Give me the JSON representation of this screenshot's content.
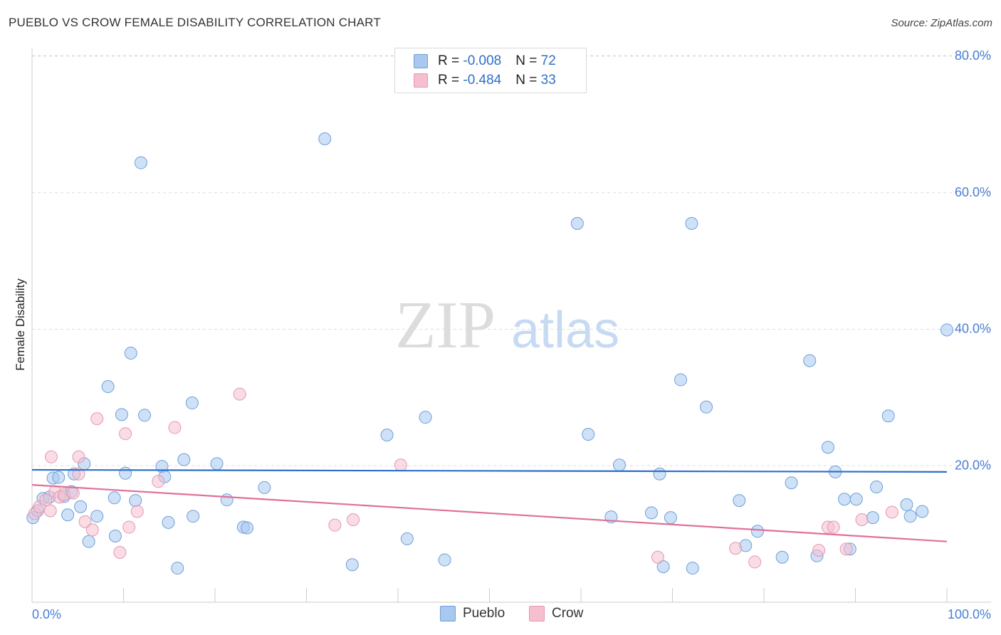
{
  "title": "PUEBLO VS CROW FEMALE DISABILITY CORRELATION CHART",
  "source": "Source: ZipAtlas.com",
  "watermark": {
    "zip": "ZIP",
    "atlas": "atlas"
  },
  "legend": [
    {
      "r_label": "R = ",
      "r_value": "-0.008",
      "n_label": "N = ",
      "n_value": "72"
    },
    {
      "r_label": "R = ",
      "r_value": "-0.484",
      "n_label": "N = ",
      "n_value": "33"
    }
  ],
  "colors": {
    "pueblo_fill": "#a8c8f0",
    "pueblo_stroke": "#6f9fd8",
    "pueblo_line": "#2f6fc9",
    "crow_fill": "#f6bfd0",
    "crow_stroke": "#e597b0",
    "crow_line": "#e0709a",
    "axis_label": "#4a7fd4"
  },
  "chart_data": {
    "type": "scatter",
    "xlabel": "",
    "ylabel": "Female Disability",
    "xlim": [
      0,
      100
    ],
    "ylim": [
      0,
      80
    ],
    "x_tick_labels": [
      "0.0%",
      "100.0%"
    ],
    "y_ticks": [
      20,
      40,
      60,
      80
    ],
    "y_tick_labels": [
      "20.0%",
      "40.0%",
      "60.0%",
      "80.0%"
    ],
    "grid": true,
    "legend_position": "top-center",
    "series": [
      {
        "name": "Pueblo",
        "r": -0.008,
        "n": 72,
        "trend": [
          [
            0,
            19.4
          ],
          [
            100,
            19.1
          ]
        ],
        "points": [
          [
            0.1,
            12.4
          ],
          [
            0.6,
            13.4
          ],
          [
            1.2,
            15.2
          ],
          [
            1.9,
            15.4
          ],
          [
            2.3,
            18.2
          ],
          [
            2.9,
            18.3
          ],
          [
            3.5,
            15.5
          ],
          [
            3.9,
            12.8
          ],
          [
            4.3,
            16.2
          ],
          [
            4.6,
            18.8
          ],
          [
            5.3,
            14.0
          ],
          [
            5.7,
            20.3
          ],
          [
            6.2,
            8.9
          ],
          [
            7.1,
            12.6
          ],
          [
            8.3,
            31.6
          ],
          [
            9.0,
            15.3
          ],
          [
            9.1,
            9.7
          ],
          [
            9.8,
            27.5
          ],
          [
            10.2,
            18.9
          ],
          [
            10.8,
            36.5
          ],
          [
            11.3,
            14.9
          ],
          [
            11.9,
            64.4
          ],
          [
            12.3,
            27.4
          ],
          [
            14.2,
            19.9
          ],
          [
            14.5,
            18.4
          ],
          [
            14.9,
            11.7
          ],
          [
            15.9,
            5.0
          ],
          [
            16.6,
            20.9
          ],
          [
            17.5,
            29.2
          ],
          [
            17.6,
            12.6
          ],
          [
            20.2,
            20.3
          ],
          [
            21.3,
            15.0
          ],
          [
            23.1,
            11.0
          ],
          [
            23.5,
            10.9
          ],
          [
            25.4,
            16.8
          ],
          [
            32.0,
            67.9
          ],
          [
            35.0,
            5.5
          ],
          [
            38.8,
            24.5
          ],
          [
            41.0,
            9.3
          ],
          [
            43.0,
            27.1
          ],
          [
            45.1,
            6.2
          ],
          [
            59.6,
            55.5
          ],
          [
            60.8,
            24.6
          ],
          [
            63.3,
            12.5
          ],
          [
            64.2,
            20.1
          ],
          [
            67.7,
            13.1
          ],
          [
            68.6,
            18.8
          ],
          [
            69.0,
            5.2
          ],
          [
            69.8,
            12.4
          ],
          [
            70.9,
            32.6
          ],
          [
            72.1,
            55.5
          ],
          [
            72.2,
            5.0
          ],
          [
            73.7,
            28.6
          ],
          [
            77.3,
            14.9
          ],
          [
            78.0,
            8.3
          ],
          [
            79.3,
            10.4
          ],
          [
            82.0,
            6.6
          ],
          [
            83.0,
            17.5
          ],
          [
            85.0,
            35.4
          ],
          [
            85.8,
            6.8
          ],
          [
            87.0,
            22.7
          ],
          [
            87.8,
            19.1
          ],
          [
            88.8,
            15.1
          ],
          [
            89.4,
            7.8
          ],
          [
            90.1,
            15.1
          ],
          [
            91.9,
            12.4
          ],
          [
            92.3,
            16.9
          ],
          [
            93.6,
            27.3
          ],
          [
            95.6,
            14.3
          ],
          [
            96.0,
            12.6
          ],
          [
            97.3,
            13.3
          ],
          [
            100.0,
            39.9
          ]
        ]
      },
      {
        "name": "Crow",
        "r": -0.484,
        "n": 33,
        "trend": [
          [
            0,
            17.2
          ],
          [
            100,
            8.9
          ]
        ],
        "points": [
          [
            0.3,
            13.0
          ],
          [
            0.8,
            14.0
          ],
          [
            1.5,
            15.0
          ],
          [
            2.0,
            13.4
          ],
          [
            2.1,
            21.3
          ],
          [
            2.5,
            16.2
          ],
          [
            3.0,
            15.4
          ],
          [
            3.5,
            15.8
          ],
          [
            4.5,
            16.0
          ],
          [
            5.1,
            21.3
          ],
          [
            5.1,
            18.8
          ],
          [
            5.8,
            11.8
          ],
          [
            6.6,
            10.6
          ],
          [
            7.1,
            26.9
          ],
          [
            9.6,
            7.3
          ],
          [
            10.2,
            24.7
          ],
          [
            10.6,
            11.0
          ],
          [
            11.5,
            13.3
          ],
          [
            13.8,
            17.7
          ],
          [
            15.6,
            25.6
          ],
          [
            22.7,
            30.5
          ],
          [
            33.1,
            11.3
          ],
          [
            35.1,
            12.1
          ],
          [
            40.3,
            20.1
          ],
          [
            68.4,
            6.6
          ],
          [
            76.9,
            7.9
          ],
          [
            79.0,
            5.9
          ],
          [
            86.0,
            7.6
          ],
          [
            87.0,
            11.0
          ],
          [
            87.6,
            11.0
          ],
          [
            89.0,
            7.8
          ],
          [
            90.7,
            12.1
          ],
          [
            94.0,
            13.2
          ]
        ]
      }
    ]
  }
}
